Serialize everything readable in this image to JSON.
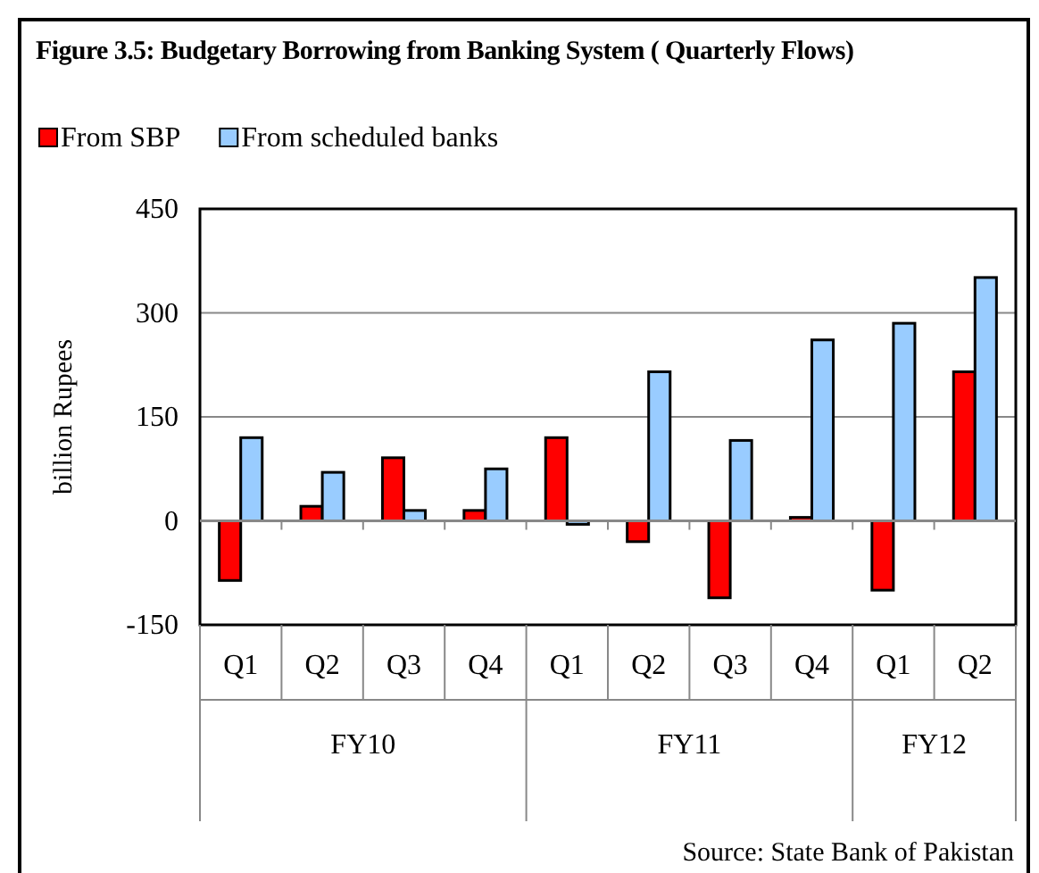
{
  "chart_data": {
    "type": "bar",
    "title": "Figure 3.5: Budgetary Borrowing from Banking  System ( Quarterly Flows)",
    "ylabel": "billion Rupees",
    "categories": [
      "Q1",
      "Q2",
      "Q3",
      "Q4",
      "Q1",
      "Q2",
      "Q3",
      "Q4",
      "Q1",
      "Q2"
    ],
    "series": [
      {
        "name": "From SBP",
        "color": "#ff0000",
        "values": [
          -86,
          21,
          91,
          15,
          120,
          -30,
          -111,
          5,
          -100,
          215
        ]
      },
      {
        "name": "From scheduled banks",
        "color": "#99ccff",
        "values": [
          120,
          70,
          15,
          75,
          -5,
          215,
          116,
          261,
          285,
          351
        ]
      }
    ],
    "ylim": [
      -150,
      450
    ],
    "yticks": [
      -150,
      0,
      150,
      300,
      450
    ],
    "grid": "y",
    "legend": "top left",
    "annotations": [
      "FY10",
      "FY11",
      "FY12",
      "Source: State Bank of Pakistan"
    ]
  }
}
